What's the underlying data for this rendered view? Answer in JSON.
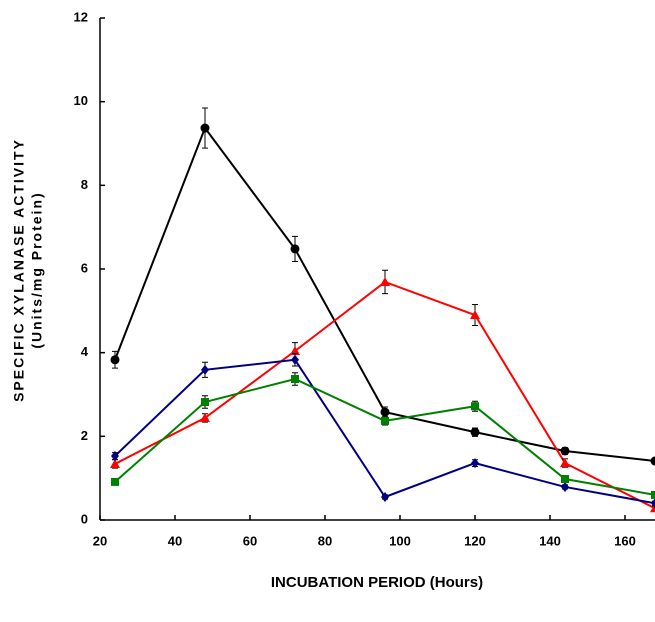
{
  "chart_data": {
    "type": "line",
    "xlabel": "INCUBATION PERIOD (Hours)",
    "ylabel": [
      "SPECIFIC XYLANASE ACTIVITY",
      "(Units/mg Protein)"
    ],
    "x": [
      24,
      48,
      72,
      96,
      120,
      144,
      168
    ],
    "xlim": [
      20,
      168
    ],
    "xticks": [
      20,
      40,
      60,
      80,
      100,
      120,
      140,
      160
    ],
    "ylim": [
      0,
      12
    ],
    "yticks": [
      0,
      2,
      4,
      6,
      8,
      10,
      12
    ],
    "series": [
      {
        "color": "#000000",
        "marker": "circle",
        "values": [
          3.83,
          9.37,
          6.48,
          2.58,
          2.1,
          1.65,
          1.41
        ],
        "errors": [
          0.2,
          0.48,
          0.3,
          0.12,
          0.1,
          0.08,
          0.05
        ]
      },
      {
        "color": "#ff0000",
        "marker": "triangle",
        "values": [
          1.34,
          2.44,
          4.04,
          5.69,
          4.9,
          1.36,
          0.28
        ],
        "errors": [
          0.1,
          0.1,
          0.2,
          0.28,
          0.25,
          0.1,
          0.05
        ]
      },
      {
        "color": "#000080",
        "marker": "diamond",
        "values": [
          1.53,
          3.59,
          3.83,
          0.55,
          1.36,
          0.79,
          0.4
        ],
        "errors": [
          0.08,
          0.18,
          0.15,
          0.05,
          0.08,
          0.05,
          0.05
        ]
      },
      {
        "color": "#008000",
        "marker": "square",
        "values": [
          0.91,
          2.82,
          3.37,
          2.37,
          2.72,
          0.98,
          0.6
        ],
        "errors": [
          0.05,
          0.15,
          0.15,
          0.1,
          0.12,
          0.05,
          0.05
        ]
      }
    ]
  }
}
